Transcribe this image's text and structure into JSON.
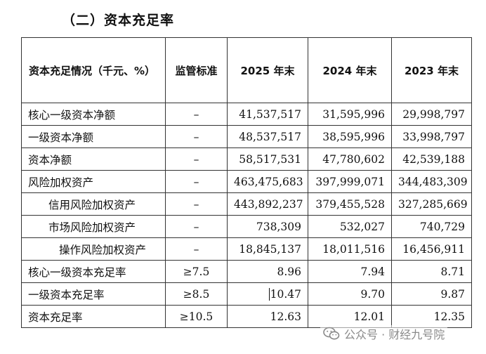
{
  "section_title": "（二）资本充足率",
  "table": {
    "headers": [
      "资本充足情况（千元、%）",
      "监管标准",
      "2025 年末",
      "2024 年末",
      "2023 年末"
    ],
    "rows": [
      {
        "label": "核心一级资本净额",
        "indent": 0,
        "standard": "–",
        "y2025": "41,537,517",
        "y2024": "31,595,996",
        "y2023": "29,998,797"
      },
      {
        "label": "一级资本净额",
        "indent": 0,
        "standard": "–",
        "y2025": "48,537,517",
        "y2024": "38,595,996",
        "y2023": "33,998,797"
      },
      {
        "label": "资本净额",
        "indent": 0,
        "standard": "–",
        "y2025": "58,517,531",
        "y2024": "47,780,602",
        "y2023": "42,539,188"
      },
      {
        "label": "风险加权资产",
        "indent": 0,
        "standard": "–",
        "y2025": "463,475,683",
        "y2024": "397,999,071",
        "y2023": "344,483,309"
      },
      {
        "label": "信用风险加权资产",
        "indent": 1,
        "standard": "–",
        "y2025": "443,892,237",
        "y2024": "379,455,528",
        "y2023": "327,285,669"
      },
      {
        "label": "市场风险加权资产",
        "indent": 1,
        "standard": "–",
        "y2025": "738,309",
        "y2024": "532,027",
        "y2023": "740,729"
      },
      {
        "label": "操作风险加权资产",
        "indent": 2,
        "standard": "–",
        "y2025": "18,845,137",
        "y2024": "18,011,516",
        "y2023": "16,456,911"
      },
      {
        "label": "核心一级资本充足率",
        "indent": 0,
        "standard": "≥7.5",
        "y2025": "8.96",
        "y2024": "7.94",
        "y2023": "8.71"
      },
      {
        "label": "一级资本充足率",
        "indent": 0,
        "standard": "≥8.5",
        "y2025": "10.47",
        "y2024": "9.70",
        "y2023": "9.87",
        "cursor": true
      },
      {
        "label": "资本充足率",
        "indent": 0,
        "standard": "≥10.5",
        "y2025": "12.63",
        "y2024": "12.01",
        "y2023": "12.35"
      }
    ]
  },
  "watermark": {
    "text": "公众号 · 财经九号院",
    "icon": "wechat-icon"
  }
}
